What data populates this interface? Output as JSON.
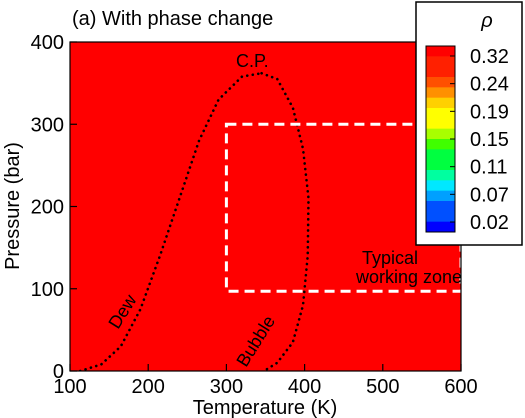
{
  "chart_data": {
    "type": "heatmap",
    "title": "(a) With phase change",
    "xlabel": "Temperature (K)",
    "ylabel": "Pressure (bar)",
    "xlim": [
      100,
      600
    ],
    "ylim": [
      0,
      400
    ],
    "xticks": [
      100,
      200,
      300,
      400,
      500,
      600
    ],
    "yticks": [
      0,
      100,
      200,
      300,
      400
    ],
    "colorbar": {
      "label": "ρ",
      "ticks": [
        "0.32",
        "0.24",
        "0.19",
        "0.15",
        "0.11",
        "0.07",
        "0.02"
      ],
      "min": 0.02,
      "max": 0.32,
      "levels": 18,
      "colors": [
        "#0000ff",
        "#0050ff",
        "#00a0ff",
        "#00e8ff",
        "#00ffa0",
        "#00ff40",
        "#40ff00",
        "#a8ff00",
        "#ffff00",
        "#ffd000",
        "#ff9000",
        "#ff5000",
        "#ff2000",
        "#ff0000"
      ],
      "position": "top-right"
    },
    "dew_curve": [
      [
        113,
        0
      ],
      [
        140,
        8
      ],
      [
        165,
        30
      ],
      [
        190,
        75
      ],
      [
        215,
        140
      ],
      [
        240,
        210
      ],
      [
        265,
        280
      ],
      [
        290,
        330
      ],
      [
        320,
        358
      ],
      [
        345,
        362
      ]
    ],
    "bubble_curve": [
      [
        345,
        362
      ],
      [
        365,
        355
      ],
      [
        385,
        320
      ],
      [
        398,
        270
      ],
      [
        405,
        210
      ],
      [
        404,
        140
      ],
      [
        398,
        80
      ],
      [
        385,
        35
      ],
      [
        365,
        10
      ],
      [
        348,
        0
      ]
    ],
    "working_zone": {
      "x": [
        300,
        600
      ],
      "y": [
        97,
        300
      ]
    },
    "annotations": {
      "critical_point": "C.P.",
      "dew": "Dew",
      "bubble": "Bubble",
      "zone_line1": "Typical",
      "zone_line2": "working zone"
    }
  }
}
